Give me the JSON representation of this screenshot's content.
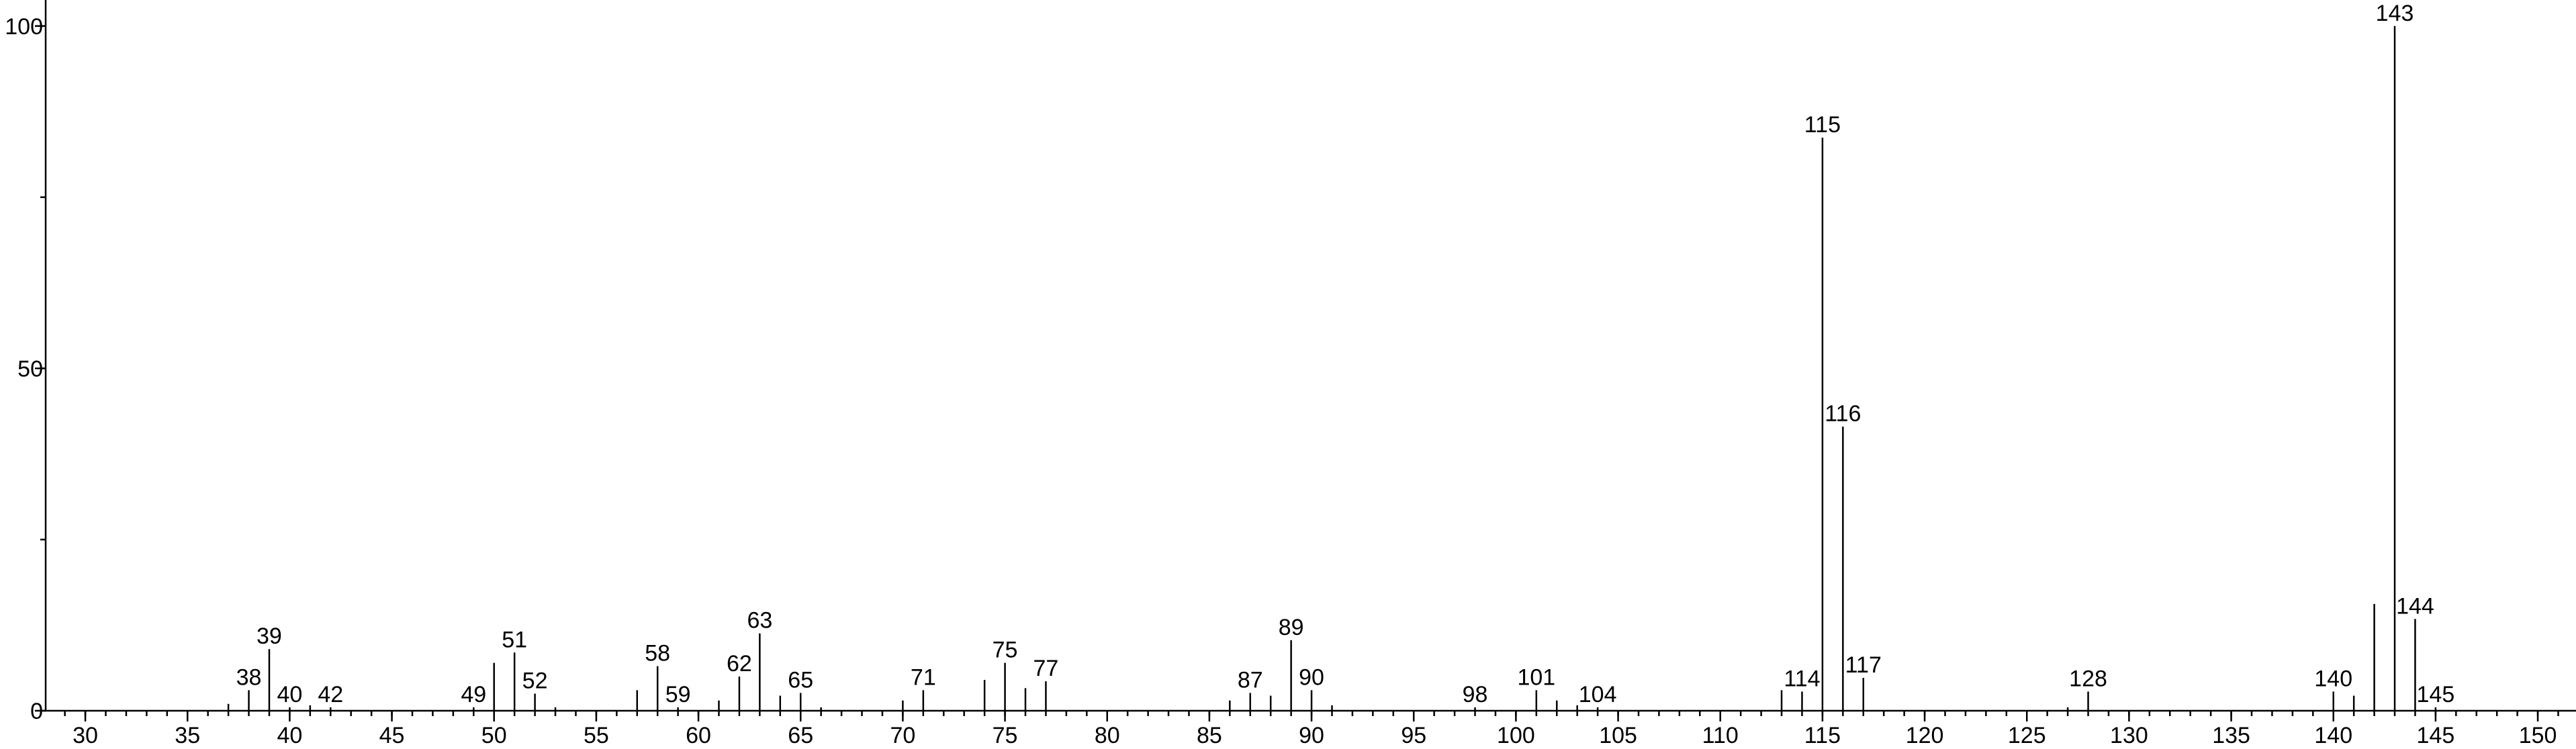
{
  "chart_data": {
    "type": "stem",
    "x": [
      37,
      38,
      39,
      40,
      41,
      42,
      49,
      50,
      51,
      52,
      53,
      57,
      58,
      59,
      61,
      62,
      63,
      64,
      65,
      66,
      70,
      71,
      74,
      75,
      76,
      77,
      86,
      87,
      88,
      89,
      90,
      91,
      98,
      101,
      102,
      103,
      104,
      113,
      114,
      115,
      116,
      117,
      127,
      128,
      140,
      141,
      142,
      143,
      144,
      145
    ],
    "values": [
      1,
      3,
      9,
      0.5,
      0.8,
      0.5,
      0.5,
      7,
      8.5,
      2.5,
      0.5,
      3,
      6.5,
      0.5,
      1.5,
      5,
      11.3,
      2.2,
      2.6,
      0.5,
      1.5,
      3,
      4.5,
      7,
      3.3,
      4.3,
      1.5,
      2.6,
      2.2,
      10.3,
      3,
      0.8,
      0.5,
      3,
      1.5,
      0.8,
      0.5,
      3,
      2.8,
      83.7,
      41.5,
      4.8,
      0.5,
      2.8,
      2.8,
      2.2,
      15.6,
      100,
      13.4,
      0.5
    ],
    "labels": [
      null,
      "38",
      "39",
      "40",
      null,
      "42",
      "49",
      null,
      "51",
      "52",
      null,
      null,
      "58",
      "59",
      null,
      "62",
      "63",
      null,
      "65",
      null,
      null,
      "71",
      null,
      "75",
      null,
      "77",
      null,
      "87",
      null,
      "89",
      "90",
      null,
      "98",
      "101",
      null,
      null,
      "104",
      null,
      "114",
      "115",
      "116",
      "117",
      null,
      "128",
      "140",
      null,
      null,
      "143",
      "144",
      "145"
    ],
    "color": "#000000",
    "xlim": [
      28.06,
      151.87
    ],
    "xticks": [
      30,
      35,
      40,
      45,
      50,
      55,
      60,
      65,
      70,
      75,
      80,
      85,
      90,
      95,
      100,
      105,
      110,
      115,
      120,
      125,
      130,
      135,
      140,
      145,
      150
    ],
    "xminor": 1,
    "ylim": [
      0,
      103.8
    ],
    "yticks": [
      0,
      50,
      100
    ],
    "yminor": 25
  }
}
